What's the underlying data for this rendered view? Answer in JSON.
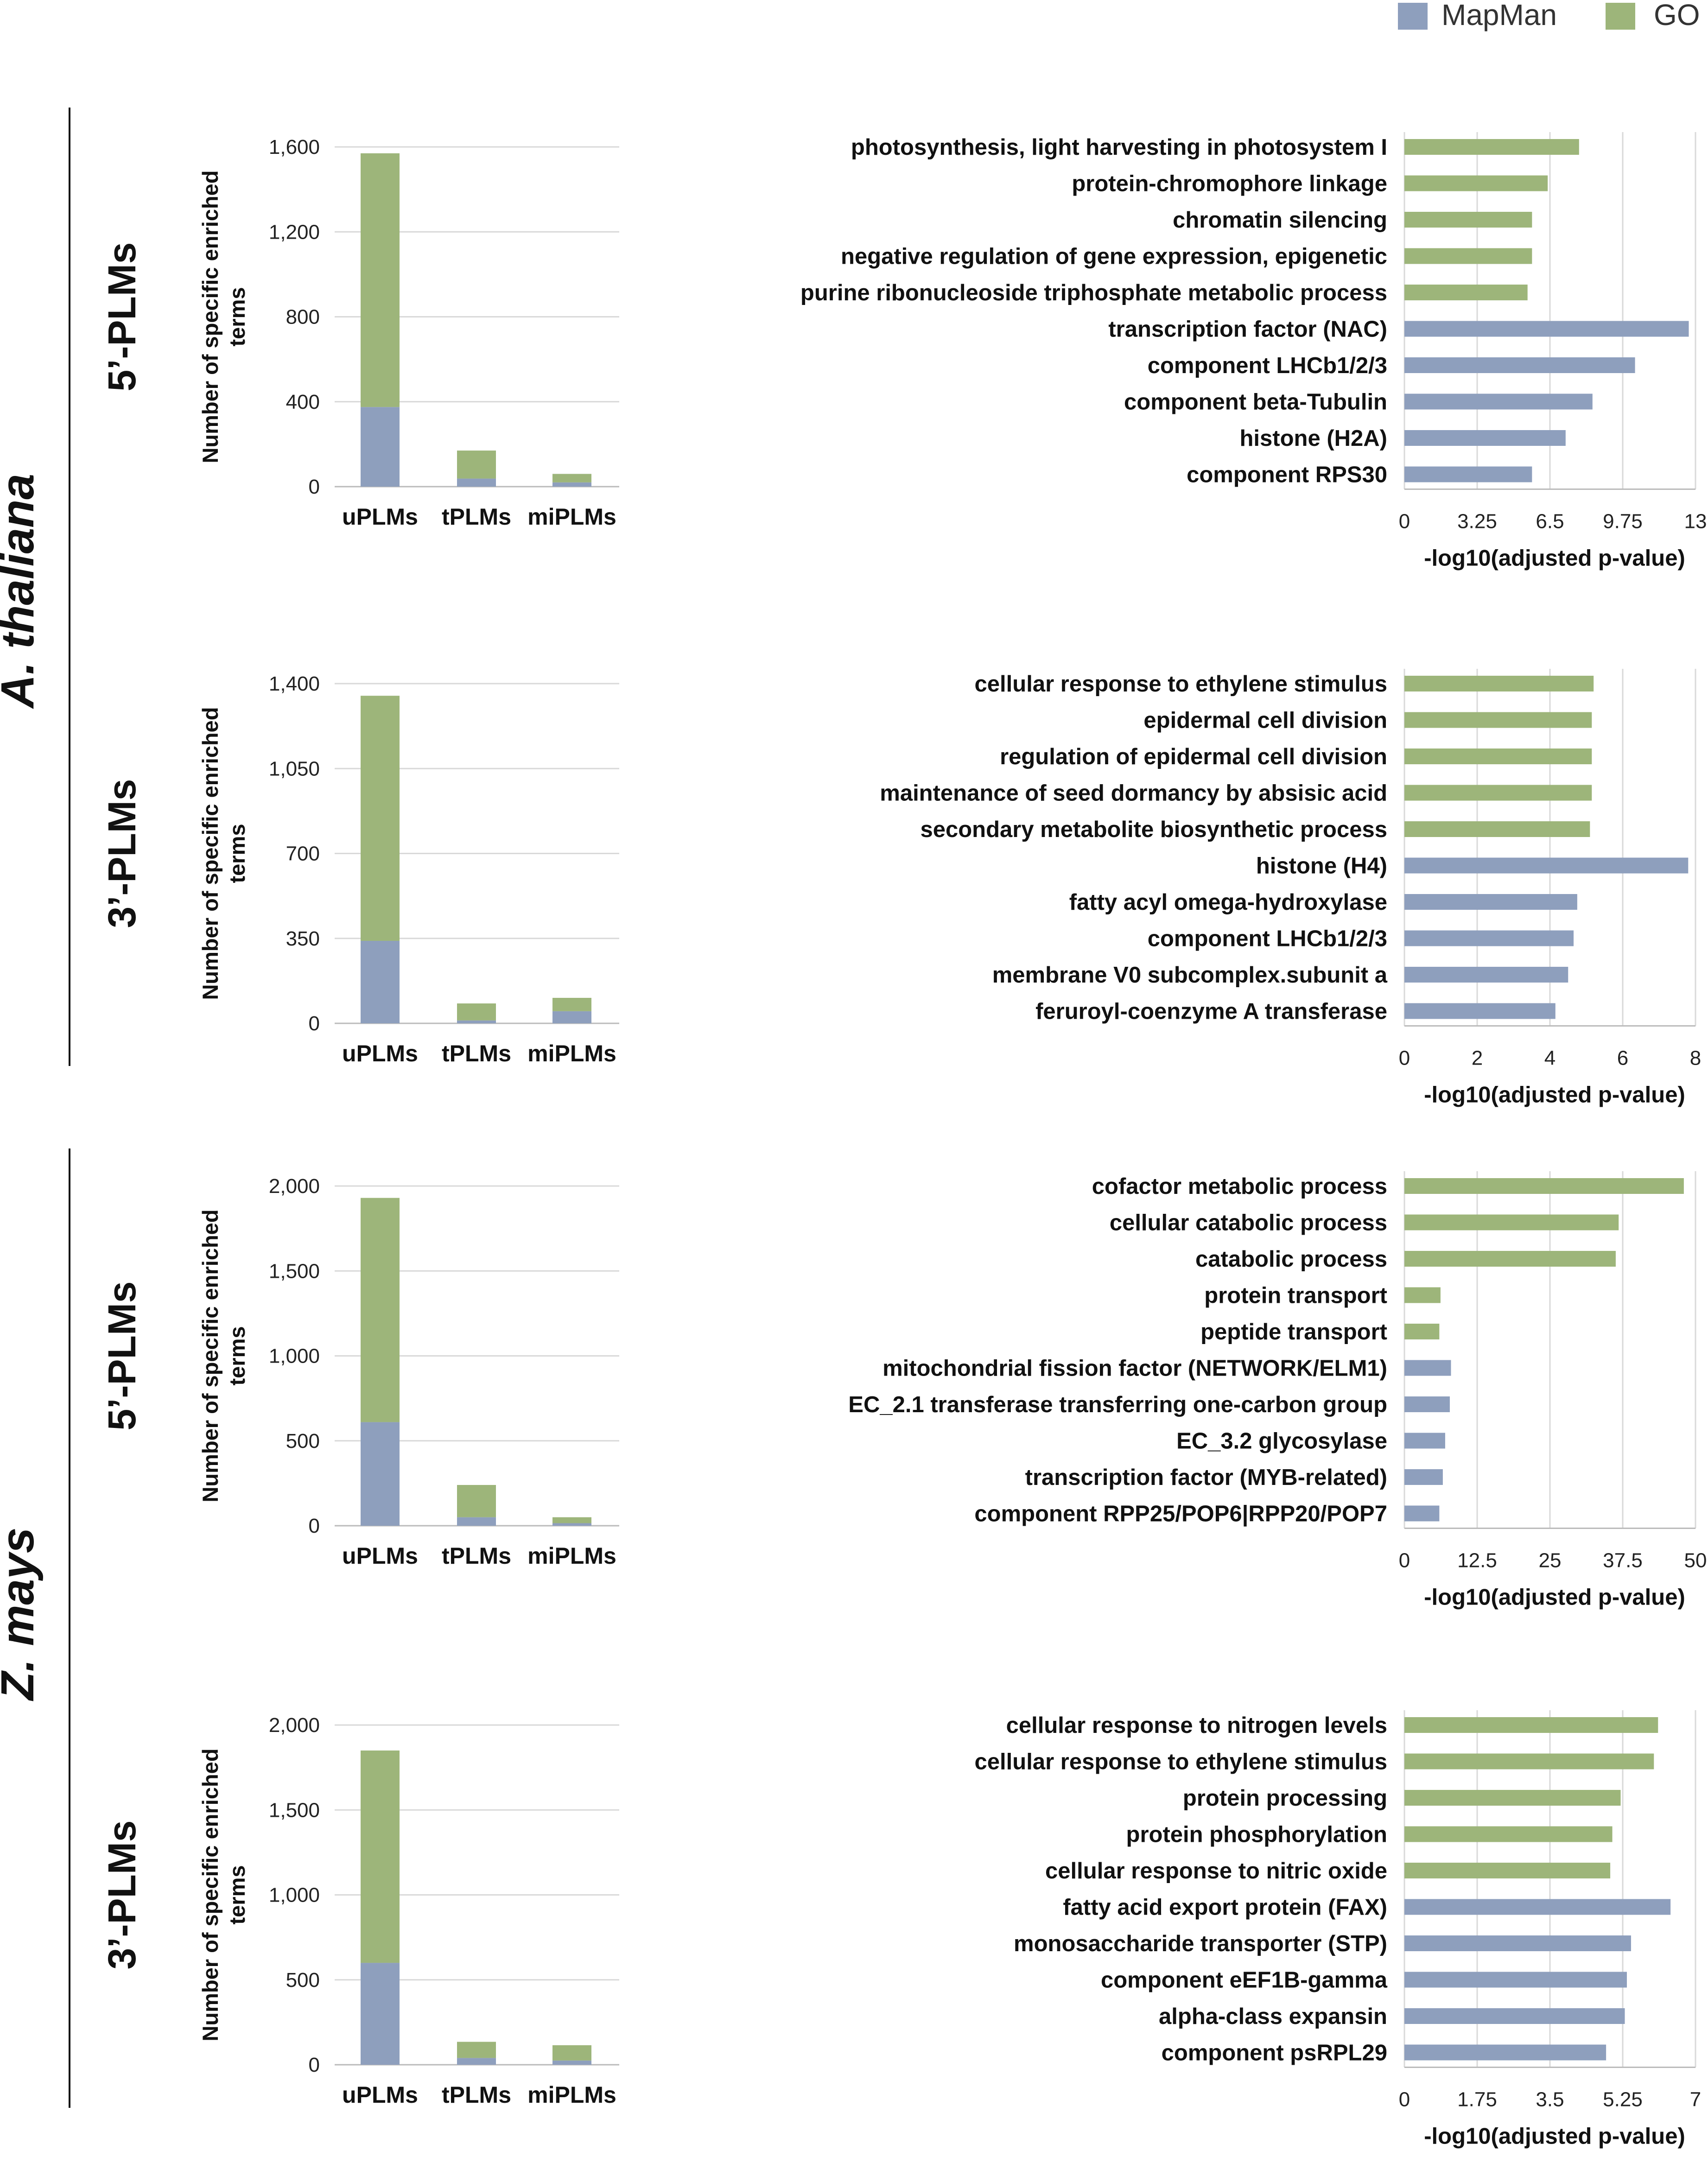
{
  "colors": {
    "mapman": "#8e9fbd",
    "go": "#9db57a",
    "grid": "#d9d9d9",
    "axis": "#bbbbbb"
  },
  "legend": {
    "mapman": "MapMan",
    "go": "GO"
  },
  "species": [
    "A. thaliana",
    "Z. mays"
  ],
  "chart_data": [
    {
      "id": "at5",
      "type": "bar",
      "stacked": true,
      "species": "A. thaliana",
      "row_label": "5’-PLMs",
      "categories": [
        "uPLMs",
        "tPLMs",
        "miPLMs"
      ],
      "series": [
        {
          "name": "MapMan",
          "values": [
            375,
            38,
            20
          ]
        },
        {
          "name": "GO",
          "values": [
            1195,
            132,
            40
          ]
        }
      ],
      "ylabel": "Number of specific enriched terms",
      "ylabel_lines": [
        "Number of specific enriched",
        "terms"
      ],
      "ylim": [
        0,
        1600
      ],
      "yticks": [
        0,
        400,
        800,
        1200,
        1600
      ],
      "ytick_labels": [
        "0",
        "400",
        "800",
        "1,200",
        "1,600"
      ]
    },
    {
      "id": "at5h",
      "type": "bar",
      "orientation": "horizontal",
      "species": "A. thaliana",
      "row_label": "5’-PLMs",
      "terms": [
        "photosynthesis, light harvesting in photosystem I",
        "protein-chromophore linkage",
        "chromatin silencing",
        "negative regulation of gene expression, epigenetic",
        "purine ribonucleoside triphosphate metabolic process",
        "transcription factor (NAC)",
        "component LHCb1/2/3",
        "component beta-Tubulin",
        "histone (H2A)",
        "component RPS30"
      ],
      "sources": [
        "GO",
        "GO",
        "GO",
        "GO",
        "GO",
        "MapMan",
        "MapMan",
        "MapMan",
        "MapMan",
        "MapMan"
      ],
      "values": [
        7.8,
        6.4,
        5.7,
        5.7,
        5.5,
        12.7,
        10.3,
        8.4,
        7.2,
        5.7
      ],
      "xlabel": "-log10(adjusted p-value)",
      "xlim": [
        0,
        13
      ],
      "xticks": [
        0,
        3.25,
        6.5,
        9.75,
        13
      ],
      "xtick_labels": [
        "0",
        "3.25",
        "6.5",
        "9.75",
        "13"
      ]
    },
    {
      "id": "at3",
      "type": "bar",
      "stacked": true,
      "species": "A. thaliana",
      "row_label": "3’-PLMs",
      "categories": [
        "uPLMs",
        "tPLMs",
        "miPLMs"
      ],
      "series": [
        {
          "name": "MapMan",
          "values": [
            340,
            12,
            50
          ]
        },
        {
          "name": "GO",
          "values": [
            1010,
            70,
            55
          ]
        }
      ],
      "ylabel": "Number of specific enriched terms",
      "ylabel_lines": [
        "Number of specific enriched",
        "terms"
      ],
      "ylim": [
        0,
        1400
      ],
      "yticks": [
        0,
        350,
        700,
        1050,
        1400
      ],
      "ytick_labels": [
        "0",
        "350",
        "700",
        "1,050",
        "1,400"
      ]
    },
    {
      "id": "at3h",
      "type": "bar",
      "orientation": "horizontal",
      "species": "A. thaliana",
      "row_label": "3’-PLMs",
      "terms": [
        "cellular response to ethylene stimulus",
        "epidermal cell division",
        "regulation of epidermal cell division",
        "maintenance of seed dormancy by absisic acid",
        "secondary metabolite biosynthetic process",
        "histone (H4)",
        "fatty acyl omega-hydroxylase",
        "component LHCb1/2/3",
        "membrane V0 subcomplex.subunit a",
        "feruroyl-coenzyme A transferase"
      ],
      "sources": [
        "GO",
        "GO",
        "GO",
        "GO",
        "GO",
        "MapMan",
        "MapMan",
        "MapMan",
        "MapMan",
        "MapMan"
      ],
      "values": [
        5.2,
        5.15,
        5.15,
        5.15,
        5.1,
        7.8,
        4.75,
        4.65,
        4.5,
        4.15
      ],
      "xlabel": "-log10(adjusted p-value)",
      "xlim": [
        0,
        8
      ],
      "xticks": [
        0,
        2,
        4,
        6,
        8
      ],
      "xtick_labels": [
        "0",
        "2",
        "4",
        "6",
        "8"
      ]
    },
    {
      "id": "zm5",
      "type": "bar",
      "stacked": true,
      "species": "Z. mays",
      "row_label": "5’-PLMs",
      "categories": [
        "uPLMs",
        "tPLMs",
        "miPLMs"
      ],
      "series": [
        {
          "name": "MapMan",
          "values": [
            610,
            50,
            15
          ]
        },
        {
          "name": "GO",
          "values": [
            1320,
            190,
            35
          ]
        }
      ],
      "ylabel": "Number of specific enriched terms",
      "ylabel_lines": [
        "Number of specific enriched",
        "terms"
      ],
      "ylim": [
        0,
        2000
      ],
      "yticks": [
        0,
        500,
        1000,
        1500,
        2000
      ],
      "ytick_labels": [
        "0",
        "500",
        "1,000",
        "1,500",
        "2,000"
      ]
    },
    {
      "id": "zm5h",
      "type": "bar",
      "orientation": "horizontal",
      "species": "Z. mays",
      "row_label": "5’-PLMs",
      "terms": [
        "cofactor metabolic process",
        "cellular catabolic process",
        "catabolic process",
        "protein transport",
        "peptide transport",
        "mitochondrial fission factor (NETWORK/ELM1)",
        "EC_2.1 transferase transferring one-carbon group",
        "EC_3.2 glycosylase",
        "transcription factor (MYB-related)",
        "component RPP25/POP6|RPP20/POP7"
      ],
      "sources": [
        "GO",
        "GO",
        "GO",
        "GO",
        "GO",
        "MapMan",
        "MapMan",
        "MapMan",
        "MapMan",
        "MapMan"
      ],
      "values": [
        48,
        36.8,
        36.3,
        6.2,
        6.0,
        8.0,
        7.8,
        7.0,
        6.6,
        6.0
      ],
      "xlabel": "-log10(adjusted p-value)",
      "xlim": [
        0,
        50
      ],
      "xticks": [
        0,
        12.5,
        25,
        37.5,
        50
      ],
      "xtick_labels": [
        "0",
        "12.5",
        "25",
        "37.5",
        "50"
      ]
    },
    {
      "id": "zm3",
      "type": "bar",
      "stacked": true,
      "species": "Z. mays",
      "row_label": "3’-PLMs",
      "categories": [
        "uPLMs",
        "tPLMs",
        "miPLMs"
      ],
      "series": [
        {
          "name": "MapMan",
          "values": [
            600,
            40,
            25
          ]
        },
        {
          "name": "GO",
          "values": [
            1250,
            95,
            90
          ]
        }
      ],
      "ylabel": "Number of specific enriched terms",
      "ylabel_lines": [
        "Number of specific enriched",
        "terms"
      ],
      "ylim": [
        0,
        2000
      ],
      "yticks": [
        0,
        500,
        1000,
        1500,
        2000
      ],
      "ytick_labels": [
        "0",
        "500",
        "1,000",
        "1,500",
        "2,000"
      ]
    },
    {
      "id": "zm3h",
      "type": "bar",
      "orientation": "horizontal",
      "species": "Z. mays",
      "row_label": "3’-PLMs",
      "terms": [
        "cellular response to nitrogen levels",
        "cellular response to ethylene stimulus",
        "protein processing",
        "protein phosphorylation",
        "cellular response to nitric oxide",
        "fatty acid export protein (FAX)",
        "monosaccharide transporter (STP)",
        "component eEF1B-gamma",
        "alpha-class expansin",
        "component psRPL29"
      ],
      "sources": [
        "GO",
        "GO",
        "GO",
        "GO",
        "GO",
        "MapMan",
        "MapMan",
        "MapMan",
        "MapMan",
        "MapMan"
      ],
      "values": [
        6.1,
        6.0,
        5.2,
        5.0,
        4.95,
        6.4,
        5.45,
        5.35,
        5.3,
        4.85
      ],
      "xlabel": "-log10(adjusted p-value)",
      "xlim": [
        0,
        7
      ],
      "xticks": [
        0,
        1.75,
        3.5,
        5.25,
        7
      ],
      "xtick_labels": [
        "0",
        "1.75",
        "3.5",
        "5.25",
        "7"
      ]
    }
  ]
}
